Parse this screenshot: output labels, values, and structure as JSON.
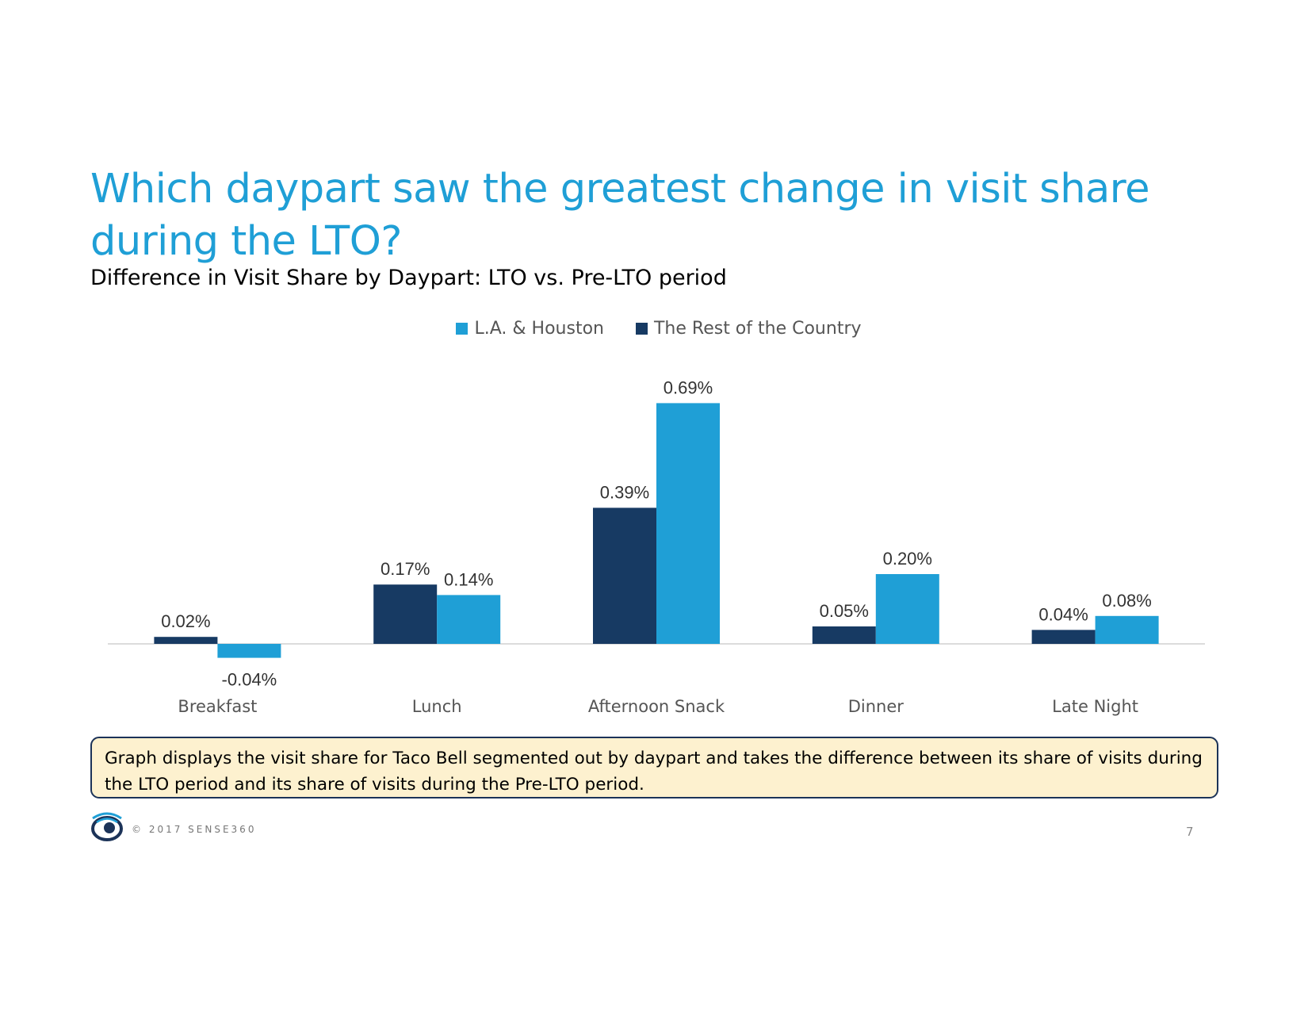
{
  "title": "Which daypart saw the greatest change in visit share during the LTO?",
  "subtitle": "Difference in Visit Share by Daypart: LTO vs. Pre-LTO period",
  "note": "Graph displays the visit share for Taco Bell segmented out by daypart and takes the difference between its share of visits during the LTO period and its share of visits during the Pre-LTO period.",
  "footer": {
    "copyright": "© 2017 SENSE360",
    "page_number": "7",
    "logo_icon": "sense360-logo-icon"
  },
  "colors": {
    "title": "#1f9fd6",
    "rest_of_country": "#173a63",
    "la_houston": "#1f9fd6",
    "note_background": "#fdf1cf",
    "note_border": "#1c3358"
  },
  "chart_data": {
    "type": "bar",
    "title": "Difference in Visit Share by Daypart: LTO vs. Pre-LTO period",
    "categories": [
      "Breakfast",
      "Lunch",
      "Afternoon Snack",
      "Dinner",
      "Late Night"
    ],
    "series": [
      {
        "name": "The Rest of the Country",
        "color": "#173a63",
        "values": [
          0.02,
          0.17,
          0.39,
          0.05,
          0.04
        ],
        "labels": [
          "0.02%",
          "0.17%",
          "0.39%",
          "0.05%",
          "0.04%"
        ]
      },
      {
        "name": "L.A. & Houston",
        "color": "#1f9fd6",
        "values": [
          -0.04,
          0.14,
          0.69,
          0.2,
          0.08
        ],
        "labels": [
          "-0.04%",
          "0.14%",
          "0.69%",
          "0.20%",
          "0.08%"
        ]
      }
    ],
    "legend": [
      {
        "name": "L.A. & Houston",
        "color": "#1f9fd6"
      },
      {
        "name": "The Rest of the Country",
        "color": "#173a63"
      }
    ],
    "legend_position": "top-center",
    "xlabel": "",
    "ylabel": "",
    "ylim": [
      -0.1,
      0.75
    ],
    "unit": "%",
    "grid": false
  }
}
